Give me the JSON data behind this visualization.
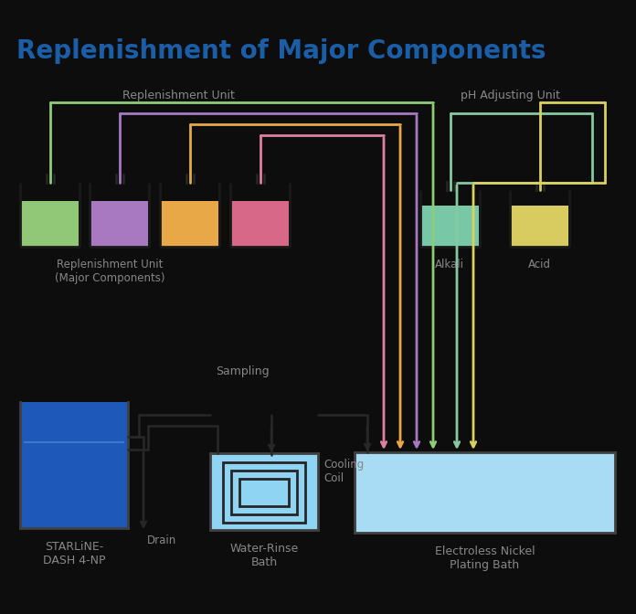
{
  "title": "Replenishment of Major Components",
  "title_color": "#1B5EA8",
  "bg": "#0D0D0D",
  "gray": "#888888",
  "labels": {
    "rep_unit": "Replenishment Unit",
    "ph_unit": "pH Adjusting Unit",
    "rep_major": "Replenishment Unit\n(Major Components)",
    "alkali": "Alkali",
    "acid": "Acid",
    "sampling": "Sampling",
    "drain": "Drain",
    "cooling": "Cooling\nCoil",
    "water_rinse": "Water-Rinse\nBath",
    "starline": "STARLiNE-\nDASH 4-NP",
    "electroless": "Electroless Nickel\nPlating Bath"
  },
  "rep_tank_colors": [
    "#90C878",
    "#A878C0",
    "#E8A848",
    "#D86888"
  ],
  "ph_tank_colors": [
    "#78C8A8",
    "#D8CC60"
  ],
  "supply_line_colors": {
    "green": "#90CC78",
    "purple": "#A878C0",
    "orange": "#E8A848",
    "pink": "#E080A0",
    "mint": "#88C8A0",
    "yellow": "#D8D060"
  },
  "starline_fill": "#1E58B8",
  "water_fill": "#90D4F4",
  "bath_fill": "#A8DCF4",
  "pipe_c": "#282828",
  "outline_c": "#383838",
  "tank_outline": "#1A1A1A"
}
